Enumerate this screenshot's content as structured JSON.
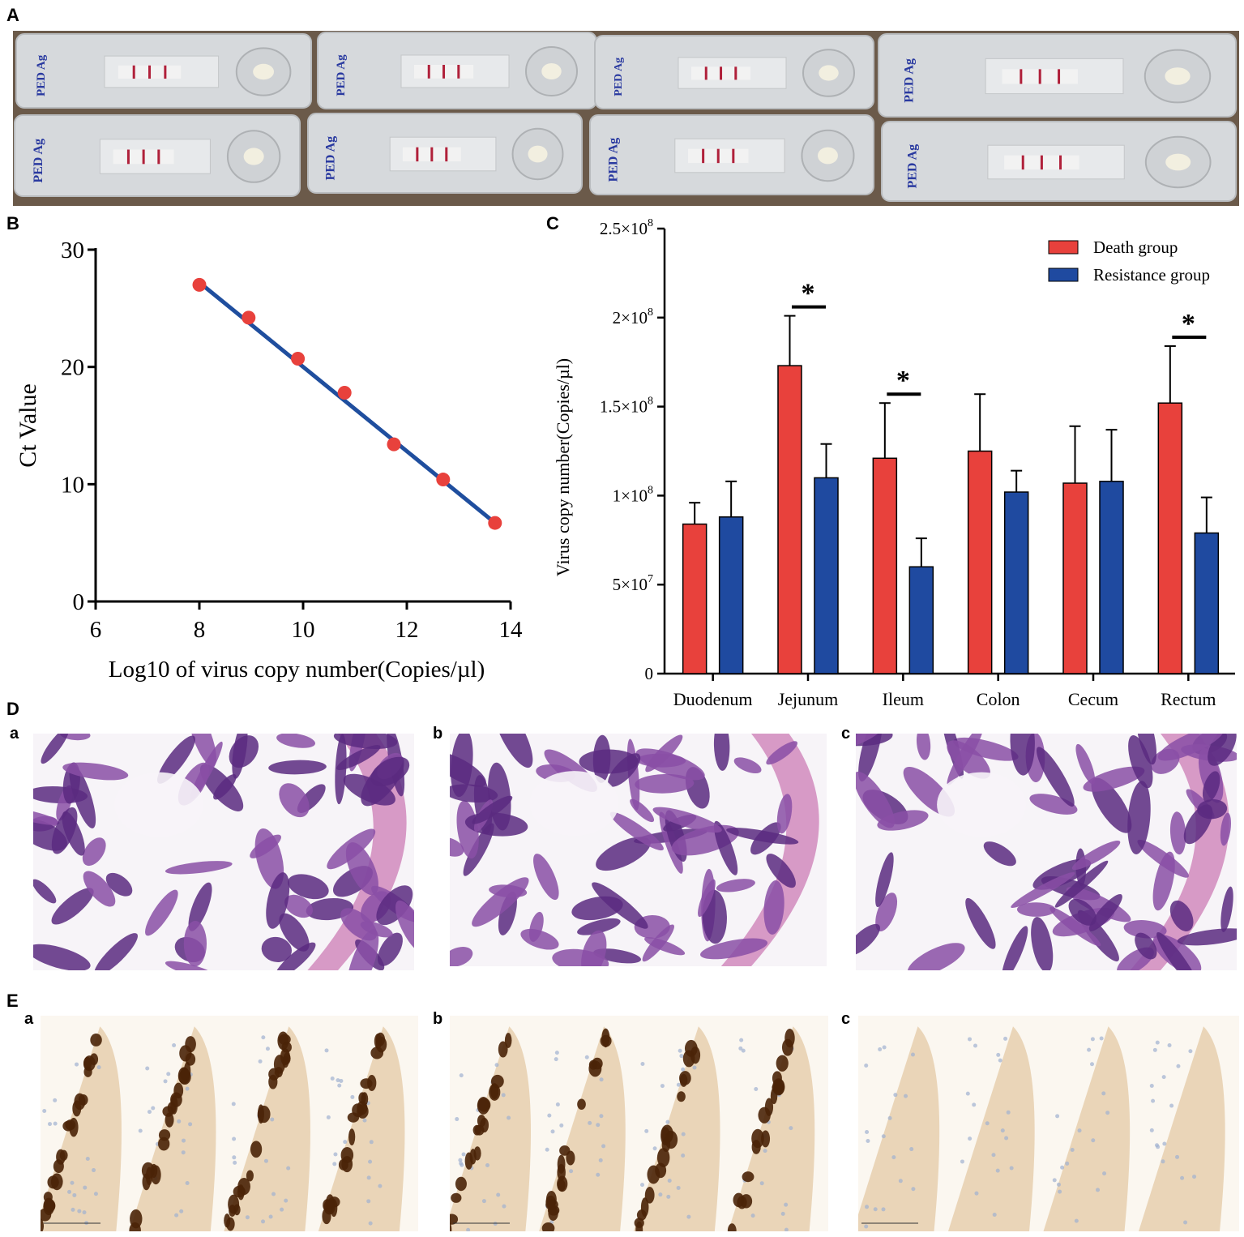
{
  "panels": {
    "a": "A",
    "b": "B",
    "c": "C",
    "d": "D",
    "e": "E",
    "sub": [
      "a",
      "b",
      "c"
    ]
  },
  "test_strips": {
    "label": "PED Ag",
    "count": 8,
    "colors": {
      "casing": "#d6d9dc",
      "window": "#f2f2f2",
      "line": "#b0203a",
      "text": "#2a3aa0",
      "background": "#6b5a4a"
    }
  },
  "chart_data": [
    {
      "type": "scatter",
      "panel": "B",
      "xlabel": "Log10 of virus copy number(Copies/µl)",
      "ylabel": "Ct Value",
      "xlim": [
        6,
        14
      ],
      "ylim": [
        0,
        30
      ],
      "xticks": [
        "6",
        "8",
        "10",
        "12",
        "14"
      ],
      "yticks": [
        "0",
        "10",
        "20",
        "30"
      ],
      "points": [
        {
          "x": 8.0,
          "y": 27.0
        },
        {
          "x": 8.95,
          "y": 24.2
        },
        {
          "x": 9.9,
          "y": 20.7
        },
        {
          "x": 10.8,
          "y": 17.8
        },
        {
          "x": 11.75,
          "y": 13.4
        },
        {
          "x": 12.7,
          "y": 10.4
        },
        {
          "x": 13.7,
          "y": 6.7
        }
      ],
      "fit_line": {
        "x": [
          8.0,
          13.7
        ],
        "y": [
          27.2,
          6.7
        ]
      },
      "colors": {
        "points": "#e8413c",
        "line": "#1f4e9e"
      }
    },
    {
      "type": "bar",
      "panel": "C",
      "ylabel": "Virus copy number(Copies/µl)",
      "ylim": [
        0,
        250000000
      ],
      "yticks": [
        {
          "value": 0,
          "label": "0"
        },
        {
          "value": 50000000,
          "label": "5×10",
          "exp": "7"
        },
        {
          "value": 100000000,
          "label": "1×10",
          "exp": "8"
        },
        {
          "value": 150000000,
          "label": "1.5×10",
          "exp": "8"
        },
        {
          "value": 200000000,
          "label": "2×10",
          "exp": "8"
        },
        {
          "value": 250000000,
          "label": "2.5×10",
          "exp": "8"
        }
      ],
      "categories": [
        "Duodenum",
        "Jejunum",
        "Ileum",
        "Colon",
        "Cecum",
        "Rectum"
      ],
      "series": [
        {
          "name": "Death group",
          "color": "#e8413c",
          "values": [
            84000000,
            173000000,
            121000000,
            125000000,
            107000000,
            152000000
          ],
          "errors": [
            12000000,
            28000000,
            31000000,
            32000000,
            32000000,
            32000000
          ]
        },
        {
          "name": "Resistance group",
          "color": "#1f4aa0",
          "values": [
            88000000,
            110000000,
            60000000,
            102000000,
            108000000,
            79000000
          ],
          "errors": [
            20000000,
            19000000,
            16000000,
            12000000,
            29000000,
            20000000
          ]
        }
      ],
      "significance": [
        {
          "category": "Jejunum",
          "label": "*",
          "y": 206000000
        },
        {
          "category": "Ileum",
          "label": "*",
          "y": 157000000
        },
        {
          "category": "Rectum",
          "label": "*",
          "y": 189000000
        }
      ],
      "legend_position": "top-right"
    }
  ],
  "histology": {
    "he_colors": {
      "tissue": "#8a4fa6",
      "dark": "#5b2a80",
      "light": "#c79ad6",
      "muscle": "#d79ac6"
    },
    "ihc_colors": {
      "tissue": "#e6cfae",
      "stain": "#4a2408",
      "nuclei": "#9fb0d0"
    }
  }
}
